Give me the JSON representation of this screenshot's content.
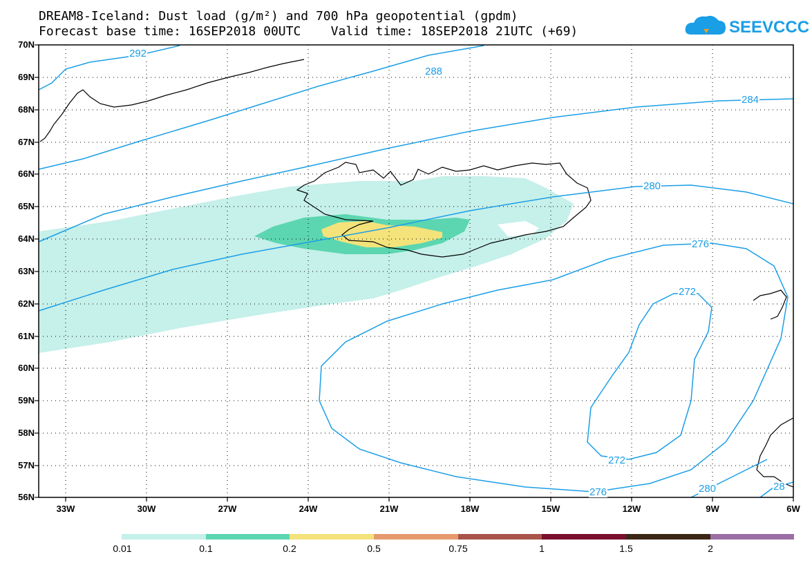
{
  "title_line1": "DREAM8-Iceland: Dust load (g/m²) and 700 hPa geopotential (gpdm)",
  "title_line2": "Forecast base time: 16SEP2018 00UTC    Valid time: 18SEP2018 21UTC (+69)",
  "logo_text": "SEEVCCC",
  "map": {
    "lat_labels": [
      "70N",
      "69N",
      "68N",
      "67N",
      "66N",
      "65N",
      "64N",
      "63N",
      "62N",
      "61N",
      "60N",
      "59N",
      "58N",
      "57N",
      "56N"
    ],
    "lon_labels": [
      "33W",
      "30W",
      "27W",
      "24W",
      "21W",
      "18W",
      "15W",
      "12W",
      "9W",
      "6W"
    ],
    "lat_range": [
      56,
      70
    ],
    "lon_range": [
      -34,
      -6
    ],
    "contour_color": "#1a9ee6",
    "contour_labels": [
      {
        "text": "292"
      },
      {
        "text": "288"
      },
      {
        "text": "284"
      },
      {
        "text": "280"
      },
      {
        "text": "276"
      },
      {
        "text": "272"
      },
      {
        "text": "272"
      },
      {
        "text": "276"
      },
      {
        "text": "280"
      },
      {
        "text": "28"
      }
    ]
  },
  "colorbar": {
    "labels": [
      "0.01",
      "0.1",
      "0.2",
      "0.5",
      "0.75",
      "1",
      "1.5",
      "2"
    ],
    "colors": [
      "#c6f0ea",
      "#5cd6b0",
      "#f4e37a",
      "#e69a6e",
      "#a8544a",
      "#7a0f2e",
      "#3b2716",
      "#9b6fa6"
    ]
  }
}
